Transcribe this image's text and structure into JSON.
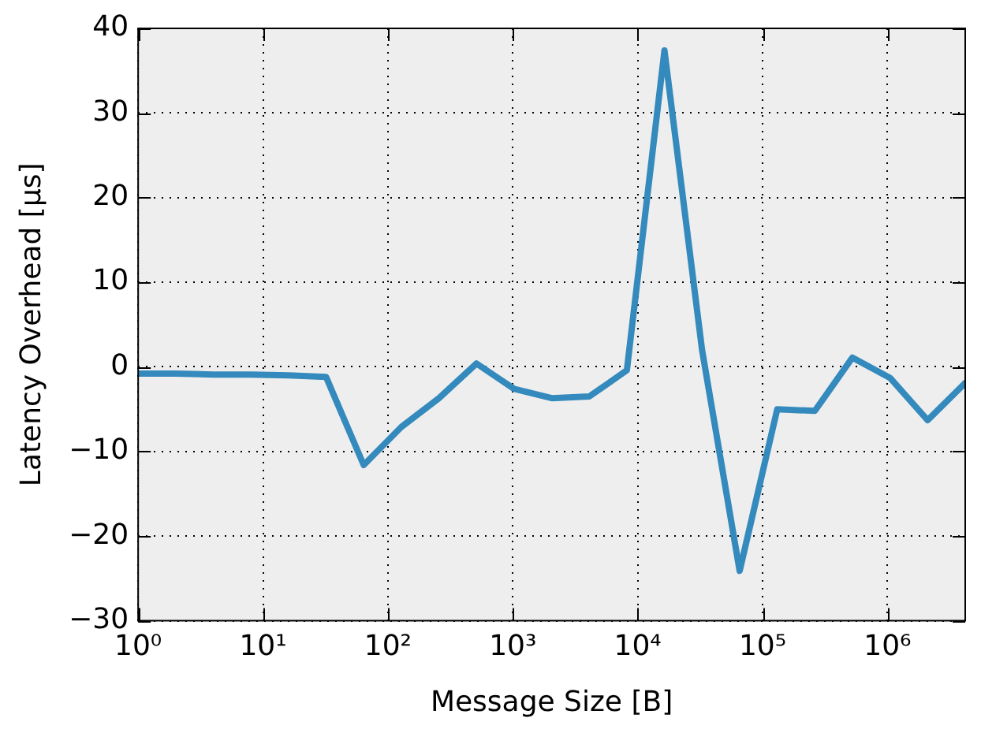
{
  "chart_data": {
    "type": "line",
    "xlabel": "Message Size [B]",
    "ylabel": "Latency Overhead [μs]",
    "x": [
      1,
      2,
      4,
      8,
      16,
      32,
      64,
      128,
      256,
      512,
      1024,
      2048,
      4096,
      8192,
      16384,
      32768,
      65536,
      131072,
      262144,
      524288,
      1048576,
      2097152,
      4194304
    ],
    "series": [
      {
        "color": "#348abd",
        "values": [
          -0.8,
          -0.8,
          -0.9,
          -0.9,
          -1.0,
          -1.2,
          -11.6,
          -7.1,
          -3.7,
          0.4,
          -2.6,
          -3.7,
          -3.5,
          -0.4,
          37.4,
          2.0,
          -24.1,
          -5.0,
          -5.2,
          1.1,
          -1.3,
          -6.3,
          -1.9
        ]
      }
    ],
    "log": "x",
    "xlim": [
      1,
      4194304
    ],
    "xticks": [
      {
        "value": 1,
        "label": "10⁰"
      },
      {
        "value": 10,
        "label": "10¹"
      },
      {
        "value": 100,
        "label": "10²"
      },
      {
        "value": 1000,
        "label": "10³"
      },
      {
        "value": 10000,
        "label": "10⁴"
      },
      {
        "value": 100000,
        "label": "10⁵"
      },
      {
        "value": 1000000,
        "label": "10⁶"
      }
    ],
    "ylim": [
      -30,
      40
    ],
    "yticks": [
      -30,
      -20,
      -10,
      0,
      10,
      20,
      30,
      40
    ],
    "grid": true,
    "marker": "none",
    "line_style": "solid",
    "legend": false
  }
}
